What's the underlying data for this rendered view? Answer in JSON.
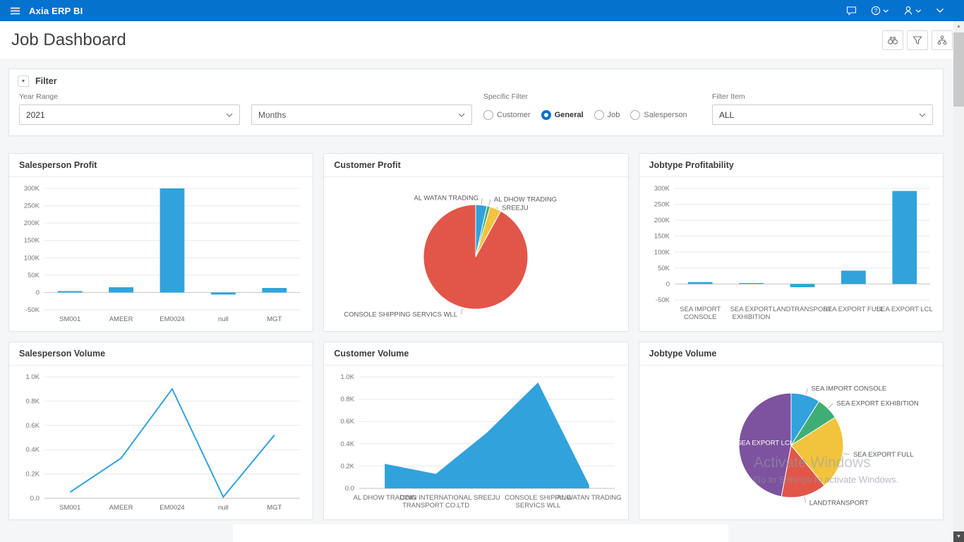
{
  "app": {
    "brand": "Axia ERP BI"
  },
  "top_bar": {
    "icons": [
      "menu-icon",
      "chat-icon",
      "help-icon",
      "user-icon",
      "chevron-down-icon"
    ]
  },
  "page": {
    "title": "Job Dashboard",
    "toolbar_icons": [
      "find-icon",
      "filter-icon",
      "actions-icon"
    ]
  },
  "filter": {
    "title": "Filter",
    "year_range": {
      "label": "Year Range",
      "value": "2021"
    },
    "months": {
      "label": "",
      "value": "Months"
    },
    "specific_filter": {
      "label": "Specific Filter",
      "options": [
        "Customer",
        "General",
        "Job",
        "Salesperson"
      ],
      "selected": "General"
    },
    "filter_item": {
      "label": "Filter Item",
      "value": "ALL"
    }
  },
  "colors": {
    "header": "#0572ce",
    "series_blue": "#31a2dc",
    "green": "#3fae75",
    "yellow": "#f2c43d",
    "red": "#e15649",
    "purple": "#7d529f"
  },
  "chart_data": [
    {
      "id": "salesperson-profit",
      "type": "bar",
      "title": "Salesperson Profit",
      "color": "#31a2dc",
      "categories": [
        "SM001",
        "AMEER",
        "EM0024",
        "null",
        "MGT"
      ],
      "values": [
        4000,
        15000,
        300000,
        -6000,
        13000
      ],
      "ylim": [
        -50000,
        300000
      ],
      "yticks": [
        {
          "v": -50000,
          "t": "-50K"
        },
        {
          "v": 0,
          "t": "0"
        },
        {
          "v": 50000,
          "t": "50K"
        },
        {
          "v": 100000,
          "t": "100K"
        },
        {
          "v": 150000,
          "t": "150K"
        },
        {
          "v": 200000,
          "t": "200K"
        },
        {
          "v": 250000,
          "t": "250K"
        },
        {
          "v": 300000,
          "t": "300K"
        }
      ]
    },
    {
      "id": "customer-profit",
      "type": "pie",
      "title": "Customer Profit",
      "slices": [
        {
          "label": "AL WATAN TRADING",
          "value": 3.5,
          "color": "#31a2dc",
          "side": "left"
        },
        {
          "label": "AL DHOW TRADING",
          "value": 1,
          "color": "#3fae75",
          "side": "right"
        },
        {
          "label": "SREEJU",
          "value": 3.5,
          "color": "#f2c43d",
          "side": "right"
        },
        {
          "label": "CONSOLE SHIPPING SERVICS WLL",
          "value": 92,
          "color": "#e15649",
          "side": "left"
        }
      ]
    },
    {
      "id": "jobtype-profitability",
      "type": "bar",
      "title": "Jobtype Profitability",
      "color": "#31a2dc",
      "categories": [
        "SEA IMPORT CONSOLE",
        "SEA EXPORT EXHIBITION",
        "LANDTRANSPORT",
        "SEA EXPORT FULL",
        "SEA EXPORT LCL"
      ],
      "values": [
        6000,
        3000,
        -10000,
        42000,
        292000
      ],
      "ylim": [
        -50000,
        300000
      ],
      "yticks": [
        {
          "v": -50000,
          "t": "-50K"
        },
        {
          "v": 0,
          "t": "0"
        },
        {
          "v": 50000,
          "t": "50K"
        },
        {
          "v": 100000,
          "t": "100K"
        },
        {
          "v": 150000,
          "t": "150K"
        },
        {
          "v": 200000,
          "t": "200K"
        },
        {
          "v": 250000,
          "t": "250K"
        },
        {
          "v": 300000,
          "t": "300K"
        }
      ]
    },
    {
      "id": "salesperson-volume",
      "type": "line",
      "title": "Salesperson Volume",
      "color": "#31a2dc",
      "categories": [
        "SM001",
        "AMEER",
        "EM0024",
        "null",
        "MGT"
      ],
      "values": [
        50,
        330,
        900,
        10,
        520
      ],
      "ylim": [
        0,
        1000
      ],
      "yticks": [
        {
          "v": 0,
          "t": "0.0"
        },
        {
          "v": 200,
          "t": "0.2K"
        },
        {
          "v": 400,
          "t": "0.4K"
        },
        {
          "v": 600,
          "t": "0.6K"
        },
        {
          "v": 800,
          "t": "0.8K"
        },
        {
          "v": 1000,
          "t": "1.0K"
        }
      ]
    },
    {
      "id": "customer-volume",
      "type": "area",
      "title": "Customer Volume",
      "color": "#31a2dc",
      "categories": [
        "AL DHOW TRADING",
        "COIN INTERNATIONAL TRANSPORT CO.LTD",
        "SREEJU",
        "CONSOLE SHIPPING SERVICS WLL",
        "AL WATAN TRADING"
      ],
      "values": [
        220,
        130,
        500,
        950,
        30
      ],
      "ylim": [
        0,
        1000
      ],
      "yticks": [
        {
          "v": 0,
          "t": "0.0"
        },
        {
          "v": 200,
          "t": "0.2K"
        },
        {
          "v": 400,
          "t": "0.4K"
        },
        {
          "v": 600,
          "t": "0.6K"
        },
        {
          "v": 800,
          "t": "0.8K"
        },
        {
          "v": 1000,
          "t": "1.0K"
        }
      ]
    },
    {
      "id": "jobtype-volume",
      "type": "pie",
      "title": "Jobtype Volume",
      "slices": [
        {
          "label": "SEA IMPORT CONSOLE",
          "value": 9,
          "color": "#31a2dc"
        },
        {
          "label": "SEA EXPORT EXHIBITION",
          "value": 7,
          "color": "#3fae75"
        },
        {
          "label": "SEA EXPORT FULL",
          "value": 23,
          "color": "#f2c43d"
        },
        {
          "label": "LANDTRANSPORT",
          "value": 14,
          "color": "#e15649"
        },
        {
          "label": "SEA EXPORT LCL",
          "value": 47,
          "color": "#7d529f",
          "inside": true
        }
      ]
    }
  ],
  "watermark": {
    "line1": "Activate Windows",
    "line2": "Go to Settings to activate Windows."
  }
}
